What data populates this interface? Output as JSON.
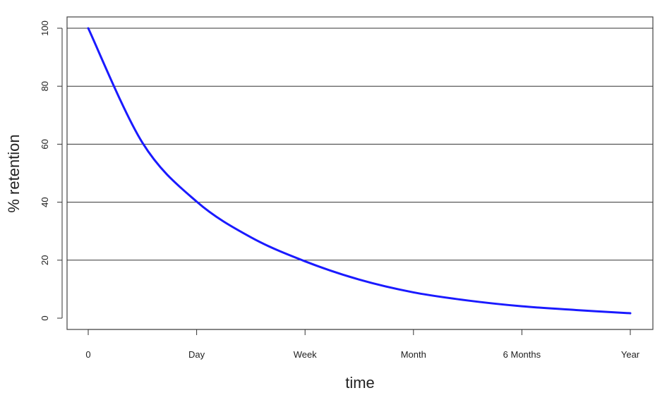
{
  "chart_data": {
    "type": "line",
    "title": "",
    "xlabel": "time",
    "ylabel": "% retention",
    "x_categories": [
      "0",
      "Day",
      "Week",
      "Month",
      "6 Months",
      "Year"
    ],
    "y_ticks": [
      0,
      20,
      40,
      60,
      80,
      100
    ],
    "ylim": [
      -4,
      104
    ],
    "grid": {
      "horizontal": true,
      "vertical": false
    },
    "legend": "none",
    "series": [
      {
        "color": "#1a1aff",
        "x": [
          0,
          0.5,
          1,
          1.5,
          2,
          2.5,
          3,
          3.5,
          4,
          4.5,
          5
        ],
        "y": [
          100,
          60.5,
          40.2,
          27.9,
          19.6,
          13.3,
          8.9,
          6.1,
          4.1,
          2.8,
          1.7
        ]
      }
    ]
  }
}
